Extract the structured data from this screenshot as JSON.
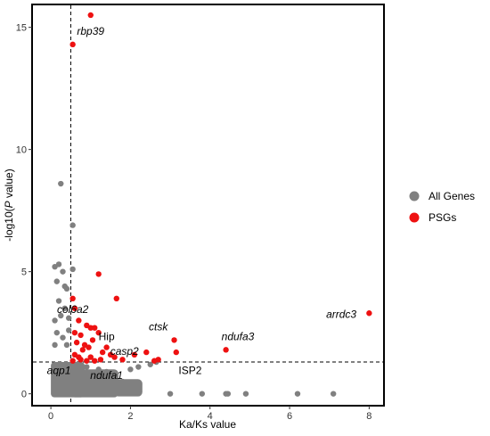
{
  "chart_data": {
    "type": "scatter",
    "xlabel": "Ka/Ks value",
    "ylabel_prefix": "-log10(",
    "ylabel_italic": "P",
    "ylabel_suffix": " value)",
    "xlim": [
      -0.45,
      8.35
    ],
    "ylim": [
      -0.45,
      15.9
    ],
    "xticks": [
      0,
      2,
      4,
      6,
      8
    ],
    "yticks": [
      0,
      5,
      10,
      15
    ],
    "reference_lines": {
      "x": 0.5,
      "y": 1.3
    },
    "grid": false,
    "legend_position": "right",
    "series": [
      {
        "name": "All Genes",
        "color": "#808080",
        "points": [
          [
            0.25,
            8.6
          ],
          [
            0.55,
            6.9
          ],
          [
            0.55,
            5.1
          ],
          [
            0.1,
            5.2
          ],
          [
            0.2,
            5.3
          ],
          [
            0.3,
            5.0
          ],
          [
            0.15,
            4.6
          ],
          [
            0.35,
            4.4
          ],
          [
            0.4,
            4.3
          ],
          [
            0.2,
            3.8
          ],
          [
            0.35,
            3.5
          ],
          [
            0.1,
            3.0
          ],
          [
            0.25,
            3.2
          ],
          [
            0.45,
            3.1
          ],
          [
            0.15,
            2.5
          ],
          [
            0.3,
            2.3
          ],
          [
            0.45,
            2.6
          ],
          [
            0.1,
            2.0
          ],
          [
            0.4,
            2.0
          ],
          [
            0.9,
            1.1
          ],
          [
            1.0,
            0.8
          ],
          [
            1.2,
            1.0
          ],
          [
            1.4,
            0.9
          ],
          [
            1.6,
            0.7
          ],
          [
            1.8,
            0.5
          ],
          [
            2.0,
            1.0
          ],
          [
            2.2,
            1.1
          ],
          [
            1.05,
            0.4
          ],
          [
            1.3,
            0.3
          ],
          [
            0.95,
            0.2
          ],
          [
            1.15,
            0.6
          ],
          [
            1.5,
            0.5
          ],
          [
            1.7,
            0.3
          ],
          [
            2.5,
            1.2
          ],
          [
            2.65,
            1.3
          ],
          [
            3.0,
            0.0
          ],
          [
            3.8,
            0.0
          ],
          [
            4.4,
            0.0
          ],
          [
            4.45,
            0.0
          ],
          [
            4.9,
            0.0
          ],
          [
            6.2,
            0.0
          ],
          [
            7.1,
            0.0
          ]
        ]
      },
      {
        "name": "PSGs",
        "color": "#ee1111",
        "points": [
          [
            1.0,
            15.5
          ],
          [
            0.55,
            14.3
          ],
          [
            1.2,
            4.9
          ],
          [
            1.65,
            3.9
          ],
          [
            0.55,
            3.9
          ],
          [
            0.6,
            3.5
          ],
          [
            0.7,
            3.0
          ],
          [
            0.9,
            2.8
          ],
          [
            1.0,
            2.7
          ],
          [
            1.1,
            2.7
          ],
          [
            0.6,
            2.5
          ],
          [
            0.75,
            2.4
          ],
          [
            1.2,
            2.5
          ],
          [
            0.85,
            2.0
          ],
          [
            0.95,
            1.9
          ],
          [
            1.05,
            2.2
          ],
          [
            1.3,
            1.7
          ],
          [
            1.5,
            1.6
          ],
          [
            1.6,
            1.5
          ],
          [
            1.8,
            1.4
          ],
          [
            2.1,
            1.6
          ],
          [
            2.4,
            1.7
          ],
          [
            2.7,
            1.4
          ],
          [
            3.1,
            2.2
          ],
          [
            3.15,
            1.7
          ],
          [
            4.4,
            1.8
          ],
          [
            8.0,
            3.3
          ],
          [
            0.6,
            1.6
          ],
          [
            0.7,
            1.5
          ],
          [
            0.8,
            1.8
          ],
          [
            0.65,
            2.1
          ],
          [
            0.75,
            1.4
          ],
          [
            1.0,
            1.5
          ],
          [
            1.25,
            1.4
          ],
          [
            1.4,
            1.9
          ],
          [
            0.55,
            1.35
          ],
          [
            0.9,
            1.35
          ],
          [
            1.1,
            1.35
          ],
          [
            2.6,
            1.35
          ]
        ]
      }
    ],
    "annotations": [
      {
        "text": "rbp39",
        "x": 1.0,
        "y": 14.7,
        "italic": true
      },
      {
        "text": "col6a2",
        "x": 0.55,
        "y": 3.3,
        "italic": true
      },
      {
        "text": "Hip",
        "x": 1.4,
        "y": 2.2,
        "italic": false
      },
      {
        "text": "casp2",
        "x": 1.85,
        "y": 1.6,
        "italic": true
      },
      {
        "text": "ctsk",
        "x": 2.7,
        "y": 2.6,
        "italic": true
      },
      {
        "text": "ndufa3",
        "x": 4.7,
        "y": 2.2,
        "italic": true
      },
      {
        "text": "arrdc3",
        "x": 7.3,
        "y": 3.1,
        "italic": true
      },
      {
        "text": "ISP2",
        "x": 3.5,
        "y": 0.8,
        "italic": false
      },
      {
        "text": "aqp1",
        "x": 0.2,
        "y": 0.8,
        "italic": true
      },
      {
        "text": "ndufa1",
        "x": 1.4,
        "y": 0.6,
        "italic": true
      }
    ]
  }
}
